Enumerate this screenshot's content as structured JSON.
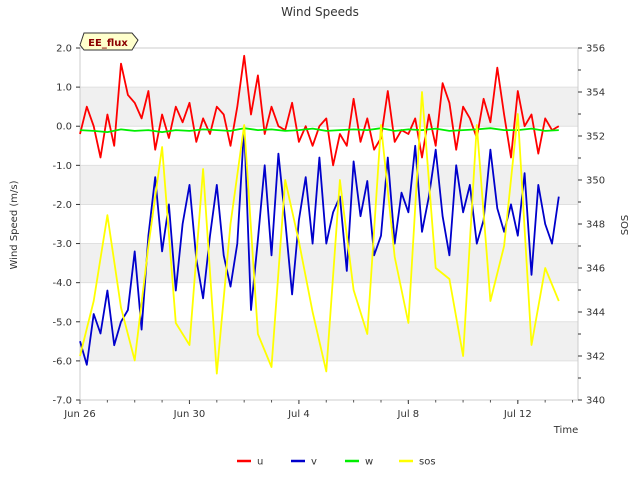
{
  "chart_data": {
    "type": "line",
    "title": "Wind Speeds",
    "badge": "EE_flux",
    "xlabel": "Time",
    "ylabel": "Wind Speed (m/s)",
    "y2label": "SOS",
    "x_range_days": [
      0,
      18.2
    ],
    "x_ticks": [
      {
        "day": 0,
        "label": "Jun 26"
      },
      {
        "day": 4,
        "label": "Jun 30"
      },
      {
        "day": 8,
        "label": "Jul 4"
      },
      {
        "day": 12,
        "label": "Jul 8"
      },
      {
        "day": 16,
        "label": "Jul 12"
      }
    ],
    "ylim": [
      -7.0,
      2.0
    ],
    "y_ticks": [
      "2.0",
      "1.0",
      "0.0",
      "-1.0",
      "-2.0",
      "-3.0",
      "-4.0",
      "-5.0",
      "-6.0",
      "-7.0"
    ],
    "y2lim": [
      340,
      356
    ],
    "y2_ticks": [
      "356",
      "354",
      "352",
      "350",
      "348",
      "346",
      "344",
      "342",
      "340"
    ],
    "legend": [
      {
        "name": "u",
        "color": "#ff0000"
      },
      {
        "name": "v",
        "color": "#0000cc"
      },
      {
        "name": "w",
        "color": "#00ee00"
      },
      {
        "name": "sos",
        "color": "#ffff00"
      }
    ],
    "series": [
      {
        "name": "u",
        "axis": "left",
        "color": "#ff0000",
        "x": [
          0,
          0.25,
          0.5,
          0.75,
          1,
          1.25,
          1.5,
          1.75,
          2,
          2.25,
          2.5,
          2.75,
          3,
          3.25,
          3.5,
          3.75,
          4,
          4.25,
          4.5,
          4.75,
          5,
          5.25,
          5.5,
          5.75,
          6,
          6.25,
          6.5,
          6.75,
          7,
          7.25,
          7.5,
          7.75,
          8,
          8.25,
          8.5,
          8.75,
          9,
          9.25,
          9.5,
          9.75,
          10,
          10.25,
          10.5,
          10.75,
          11,
          11.25,
          11.5,
          11.75,
          12,
          12.25,
          12.5,
          12.75,
          13,
          13.25,
          13.5,
          13.75,
          14,
          14.25,
          14.5,
          14.75,
          15,
          15.25,
          15.5,
          15.75,
          16,
          16.25,
          16.5,
          16.75,
          17,
          17.25,
          17.5
        ],
        "values": [
          -0.2,
          0.5,
          0.0,
          -0.8,
          0.3,
          -0.5,
          1.6,
          0.8,
          0.6,
          0.2,
          0.9,
          -0.6,
          0.3,
          -0.3,
          0.5,
          0.1,
          0.6,
          -0.4,
          0.2,
          -0.2,
          0.5,
          0.3,
          -0.5,
          0.5,
          1.8,
          0.3,
          1.3,
          -0.2,
          0.5,
          0.0,
          -0.1,
          0.6,
          -0.4,
          0.0,
          -0.5,
          0.0,
          0.2,
          -1.0,
          -0.2,
          -0.5,
          0.7,
          -0.4,
          0.2,
          -0.6,
          -0.3,
          0.9,
          -0.4,
          -0.1,
          -0.2,
          0.2,
          -0.8,
          0.3,
          -0.5,
          1.1,
          0.6,
          -0.6,
          0.5,
          0.2,
          -0.3,
          0.7,
          0.1,
          1.5,
          0.3,
          -0.8,
          0.9,
          0.0,
          0.3,
          -0.7,
          0.2,
          -0.1,
          0.0
        ]
      },
      {
        "name": "v",
        "axis": "left",
        "color": "#0000cc",
        "x": [
          0,
          0.25,
          0.5,
          0.75,
          1,
          1.25,
          1.5,
          1.75,
          2,
          2.25,
          2.5,
          2.75,
          3,
          3.25,
          3.5,
          3.75,
          4,
          4.25,
          4.5,
          4.75,
          5,
          5.25,
          5.5,
          5.75,
          6,
          6.25,
          6.5,
          6.75,
          7,
          7.25,
          7.5,
          7.75,
          8,
          8.25,
          8.5,
          8.75,
          9,
          9.25,
          9.5,
          9.75,
          10,
          10.25,
          10.5,
          10.75,
          11,
          11.25,
          11.5,
          11.75,
          12,
          12.25,
          12.5,
          12.75,
          13,
          13.25,
          13.5,
          13.75,
          14,
          14.25,
          14.5,
          14.75,
          15,
          15.25,
          15.5,
          15.75,
          16,
          16.25,
          16.5,
          16.75,
          17,
          17.25,
          17.5
        ],
        "values": [
          -5.5,
          -6.1,
          -4.8,
          -5.3,
          -4.2,
          -5.6,
          -5.0,
          -4.7,
          -3.2,
          -5.2,
          -2.8,
          -1.3,
          -3.2,
          -2.0,
          -4.2,
          -2.5,
          -1.5,
          -3.4,
          -4.4,
          -2.8,
          -1.5,
          -3.3,
          -4.1,
          -3.0,
          0.0,
          -4.7,
          -2.9,
          -1.0,
          -3.3,
          -0.7,
          -2.4,
          -4.3,
          -2.4,
          -1.3,
          -3.0,
          -0.8,
          -3.0,
          -2.2,
          -1.8,
          -3.7,
          -0.9,
          -2.3,
          -1.4,
          -3.3,
          -2.8,
          -0.8,
          -3.0,
          -1.7,
          -2.2,
          -0.5,
          -2.7,
          -1.8,
          -0.6,
          -2.3,
          -3.3,
          -1.0,
          -2.2,
          -1.5,
          -3.0,
          -2.4,
          -0.6,
          -2.1,
          -2.7,
          -2.0,
          -2.8,
          -1.2,
          -3.8,
          -1.5,
          -2.5,
          -3.0,
          -1.8
        ]
      },
      {
        "name": "w",
        "axis": "left",
        "color": "#00ee00",
        "x": [
          0,
          0.5,
          1,
          1.5,
          2,
          2.5,
          3,
          3.5,
          4,
          4.5,
          5,
          5.5,
          6,
          6.5,
          7,
          7.5,
          8,
          8.5,
          9,
          9.5,
          10,
          10.5,
          11,
          11.5,
          12,
          12.5,
          13,
          13.5,
          14,
          14.5,
          15,
          15.5,
          16,
          16.5,
          17,
          17.5
        ],
        "values": [
          -0.1,
          -0.12,
          -0.15,
          -0.08,
          -0.12,
          -0.1,
          -0.15,
          -0.1,
          -0.12,
          -0.08,
          -0.1,
          -0.12,
          -0.05,
          -0.1,
          -0.08,
          -0.12,
          -0.1,
          -0.06,
          -0.12,
          -0.1,
          -0.08,
          -0.1,
          -0.05,
          -0.12,
          -0.08,
          -0.1,
          -0.06,
          -0.12,
          -0.1,
          -0.08,
          -0.05,
          -0.1,
          -0.1,
          -0.06,
          -0.12,
          -0.1
        ]
      },
      {
        "name": "sos",
        "axis": "right",
        "color": "#ffff00",
        "x": [
          0,
          0.5,
          1,
          1.5,
          2,
          2.5,
          3,
          3.5,
          4,
          4.5,
          5,
          5.5,
          6,
          6.5,
          7,
          7.5,
          8,
          8.5,
          9,
          9.5,
          10,
          10.5,
          11,
          11.5,
          12,
          12.5,
          13,
          13.5,
          14,
          14.5,
          15,
          15.5,
          16,
          16.5,
          17,
          17.5
        ],
        "values": [
          342,
          344.5,
          348.4,
          344.2,
          341.8,
          347,
          351.5,
          343.5,
          342.5,
          350.5,
          341.2,
          348,
          352.5,
          343,
          341.5,
          350,
          347.2,
          344,
          341.3,
          350,
          345,
          343,
          352.5,
          346.5,
          343.5,
          354,
          346,
          345.5,
          342,
          352.5,
          344.5,
          347,
          353,
          342.5,
          346,
          344.5
        ]
      }
    ]
  }
}
